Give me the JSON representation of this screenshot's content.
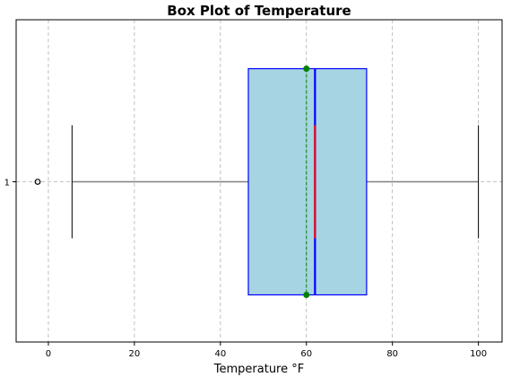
{
  "chart_data": {
    "type": "box",
    "orientation": "horizontal",
    "title": "Box Plot of Temperature",
    "xlabel": "Temperature °F",
    "ylabel": "",
    "xlim": [
      -7.5,
      105.5
    ],
    "xticks": [
      0,
      20,
      40,
      60,
      80,
      100
    ],
    "category_labels": [
      "1"
    ],
    "grid": true,
    "series": [
      {
        "whisker_low": 5.5,
        "q1": 46.5,
        "median": 62,
        "q3": 74,
        "whisker_high": 100,
        "mean": 60,
        "outliers": [
          -2.5
        ]
      }
    ],
    "colors": {
      "box_fill": "#a6d4e2",
      "box_edge": "#0000ff",
      "median_line": "#0000ff",
      "median_highlight": "#ff0000",
      "mean_line": "#008000",
      "mean_marker": "#008000",
      "whisker": "#808080",
      "cap": "#000000",
      "outlier_edge": "#000000"
    }
  }
}
